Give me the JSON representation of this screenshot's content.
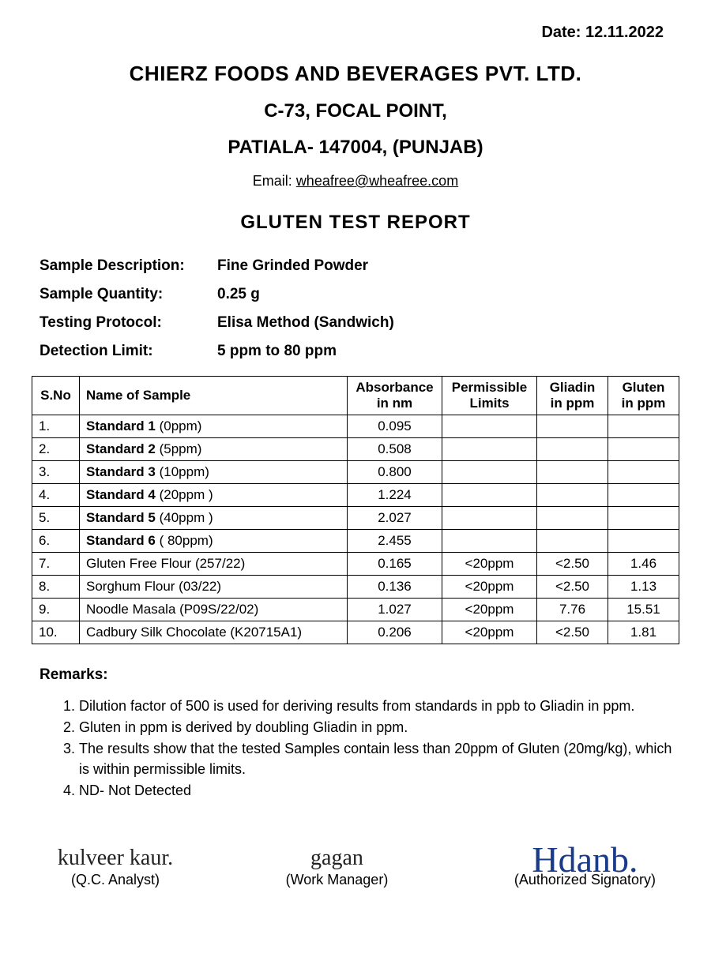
{
  "date_label": "Date: 12.11.2022",
  "header": {
    "company": "CHIERZ FOODS AND BEVERAGES PVT. LTD.",
    "addr1": "C-73, FOCAL POINT,",
    "addr2": "PATIALA- 147004, (PUNJAB)",
    "email_prefix": "Email: ",
    "email": "wheafree@wheafree.com",
    "report_title": "GLUTEN TEST REPORT"
  },
  "info": {
    "desc_label": "Sample Description:",
    "desc_value": "Fine Grinded Powder",
    "qty_label": "Sample Quantity:",
    "qty_value": "0.25 g",
    "protocol_label": "Testing Protocol:",
    "protocol_value": "Elisa Method (Sandwich)",
    "limit_label": "Detection Limit:",
    "limit_value": "5 ppm to 80 ppm"
  },
  "table": {
    "columns": {
      "sno": "S.No",
      "name": "Name of Sample",
      "abs_l1": "Absorbance",
      "abs_l2": "in nm",
      "perm_l1": "Permissible",
      "perm_l2": "Limits",
      "gliadin_l1": "Gliadin",
      "gliadin_l2": "in ppm",
      "gluten_l1": "Gluten",
      "gluten_l2": "in ppm"
    },
    "rows": [
      {
        "sno": "1.",
        "name_bold": "Standard 1 ",
        "name_note": "(0ppm)",
        "abs": "0.095",
        "perm": "",
        "gliadin": "",
        "gluten": ""
      },
      {
        "sno": "2.",
        "name_bold": "Standard 2 ",
        "name_note": "(5ppm)",
        "abs": "0.508",
        "perm": "",
        "gliadin": "",
        "gluten": ""
      },
      {
        "sno": "3.",
        "name_bold": "Standard 3 ",
        "name_note": "(10ppm)",
        "abs": "0.800",
        "perm": "",
        "gliadin": "",
        "gluten": ""
      },
      {
        "sno": "4.",
        "name_bold": "Standard 4 ",
        "name_note": "(20ppm )",
        "abs": "1.224",
        "perm": "",
        "gliadin": "",
        "gluten": ""
      },
      {
        "sno": "5.",
        "name_bold": "Standard 5 ",
        "name_note": "(40ppm )",
        "abs": "2.027",
        "perm": "",
        "gliadin": "",
        "gluten": ""
      },
      {
        "sno": "6.",
        "name_bold": "Standard 6 ",
        "name_note": "( 80ppm)",
        "abs": "2.455",
        "perm": "",
        "gliadin": "",
        "gluten": ""
      },
      {
        "sno": "7.",
        "name_bold": "",
        "name_note": "Gluten Free Flour (257/22)",
        "abs": "0.165",
        "perm": "<20ppm",
        "gliadin": "<2.50",
        "gluten": "1.46"
      },
      {
        "sno": "8.",
        "name_bold": "",
        "name_note": "Sorghum Flour (03/22)",
        "abs": "0.136",
        "perm": "<20ppm",
        "gliadin": "<2.50",
        "gluten": "1.13"
      },
      {
        "sno": "9.",
        "name_bold": "",
        "name_note": "Noodle Masala (P09S/22/02)",
        "abs": "1.027",
        "perm": "<20ppm",
        "gliadin": "7.76",
        "gluten": "15.51"
      },
      {
        "sno": "10.",
        "name_bold": "",
        "name_note": "Cadbury Silk Chocolate (K20715A1)",
        "abs": "0.206",
        "perm": "<20ppm",
        "gliadin": "<2.50",
        "gluten": "1.81"
      }
    ]
  },
  "remarks": {
    "title": "Remarks:",
    "items": [
      "Dilution factor of 500 is used for deriving results from standards in ppb to Gliadin in ppm.",
      "Gluten in ppm is derived by doubling Gliadin in ppm.",
      "The results show that the tested Samples contain less than 20ppm of Gluten (20mg/kg), which is within permissible limits.",
      "ND- Not Detected"
    ]
  },
  "signatures": {
    "qc": "(Q.C. Analyst)",
    "wm": "(Work Manager)",
    "auth": "(Authorized Signatory)"
  },
  "style": {
    "text_color": "#000000",
    "bg_color": "#ffffff",
    "border_color": "#000000",
    "signature_blue": "#1a3a8a",
    "body_fontsize": 18,
    "header_fontsize": 26,
    "table_fontsize": 17
  }
}
